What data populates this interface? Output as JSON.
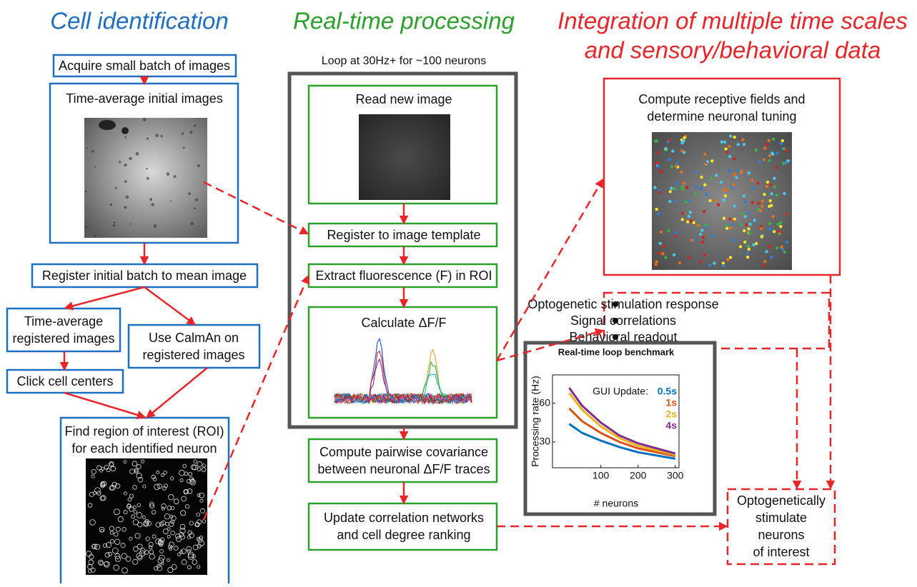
{
  "cell_identification": {
    "title": "Cell identification",
    "acquire": "Acquire small batch of images",
    "time_average": "Time-average initial images",
    "register": "Register initial batch to mean image",
    "time_average_registered": [
      "Time-average",
      "registered images"
    ],
    "caiman": [
      "Use CalmAn on",
      "registered images"
    ],
    "click": "Click cell centers",
    "roi": [
      "Find region of interest (ROI)",
      "for each identified neuron"
    ]
  },
  "real_time_processing": {
    "title": "Real-time processing",
    "loop_label": "Loop at 30Hz+ for ~100 neurons",
    "read": "Read new image",
    "register": "Register to image template",
    "extract": "Extract fluorescence (F) in ROI",
    "dff": "Calculate ΔF/F",
    "covariance": [
      "Compute pairwise covariance",
      "between neuronal ΔF/F traces"
    ],
    "networks": [
      "Update correlation networks",
      "and cell degree ranking"
    ]
  },
  "integration": {
    "title": [
      "Integration of multiple time scales",
      "and sensory/behavioral data"
    ],
    "receptive": [
      "Compute receptive fields and",
      "determine neuronal tuning"
    ],
    "readouts": [
      "Optogenetic stimulation response",
      "Signal correlations",
      "Behavioral readout"
    ],
    "stimulate": [
      "Optogenetically",
      "stimulate",
      "neurons",
      "of interest"
    ]
  },
  "chart_data": {
    "type": "line",
    "title": "Real-time loop benchmark",
    "xlabel": "# neurons",
    "ylabel": "Processing rate (Hz)",
    "legend_title": "GUI Update:",
    "x": [
      15,
      50,
      100,
      150,
      200,
      300
    ],
    "series": [
      {
        "name": "0.5s",
        "color": "#0072bd",
        "values": [
          44,
          37,
          31,
          26,
          22,
          17
        ]
      },
      {
        "name": "1s",
        "color": "#d95319",
        "values": [
          56,
          46,
          37,
          30,
          25,
          19
        ]
      },
      {
        "name": "2s",
        "color": "#edb120",
        "values": [
          68,
          55,
          42,
          33,
          27,
          20
        ]
      },
      {
        "name": "4s",
        "color": "#7e2f8e",
        "values": [
          72,
          58,
          45,
          35,
          29,
          21
        ]
      }
    ],
    "xlim": [
      -30,
      310
    ],
    "ylim": [
      10,
      82
    ],
    "xticks": [
      100,
      200,
      300
    ],
    "yticks": [
      30,
      60
    ]
  }
}
